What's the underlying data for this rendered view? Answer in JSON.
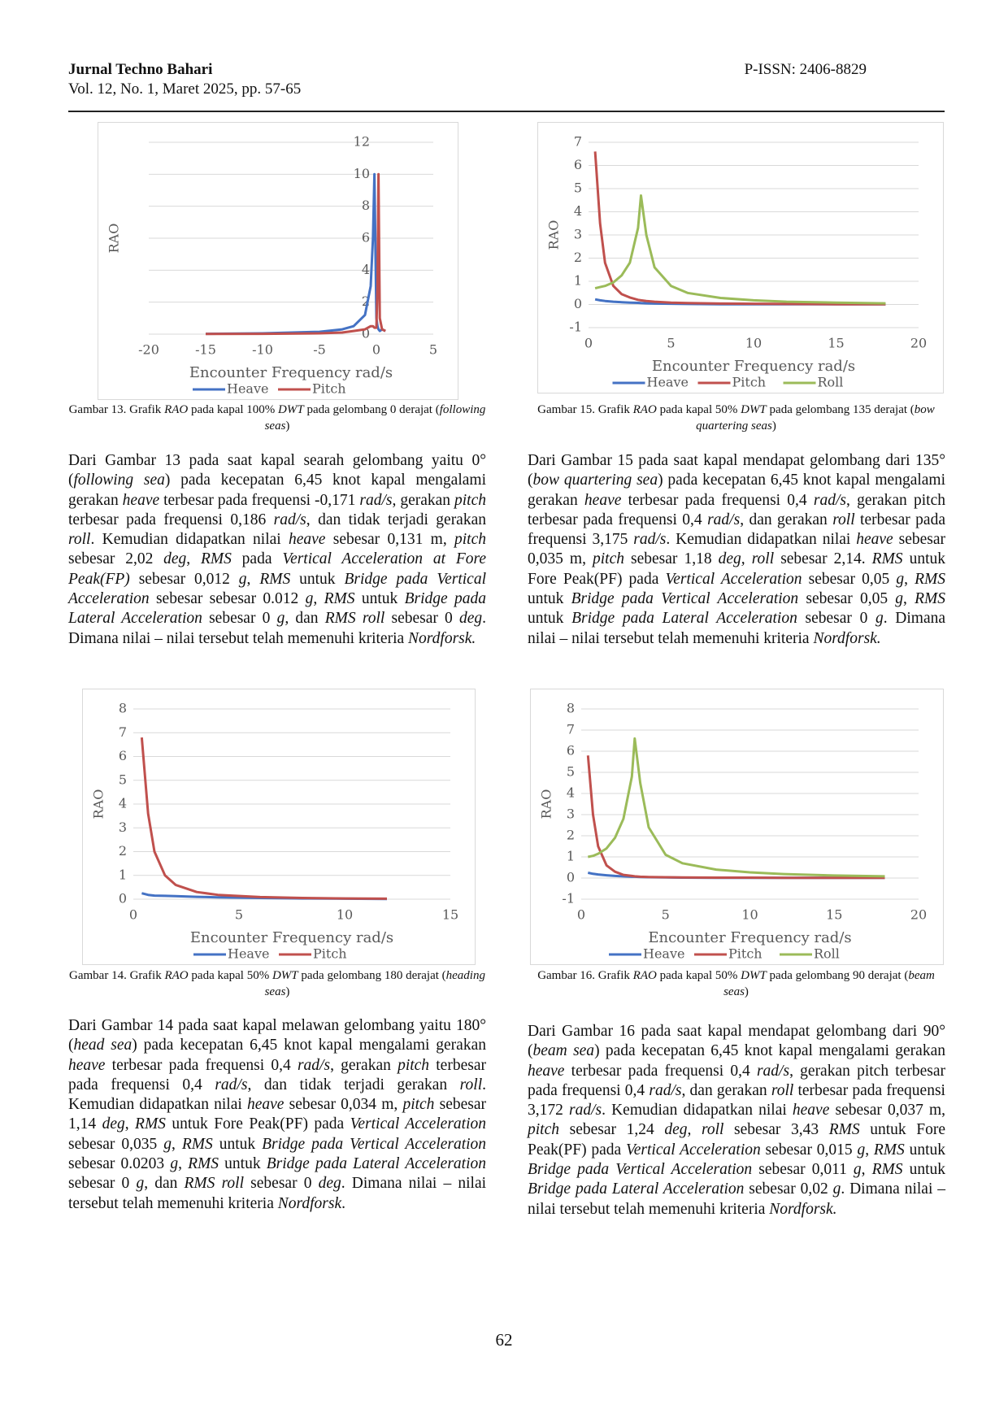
{
  "header": {
    "journal": "Jurnal Techno Bahari",
    "volume": "Vol. 12, No. 1, Maret 2025, pp. 57-65",
    "issn": "P-ISSN: 2406-8829"
  },
  "chart_data": [
    {
      "type": "line",
      "y_label": "RAO",
      "x_label": "Encounter Frequency rad/s",
      "grid": true,
      "xlim": [
        -20,
        5
      ],
      "xticks": [
        -20,
        -15,
        -10,
        -5,
        0,
        5
      ],
      "ylim": [
        0,
        12
      ],
      "yticks": [
        0,
        2,
        4,
        6,
        8,
        10,
        12
      ],
      "x": [
        -15,
        -10,
        -5,
        -3,
        -2,
        -1,
        -0.5,
        -0.3,
        -0.171,
        0,
        0.1,
        0.186,
        0.3,
        0.5,
        0.8
      ],
      "series": [
        {
          "name": "Heave",
          "color": "#4472c4",
          "values": [
            0.02,
            0.05,
            0.15,
            0.3,
            0.5,
            1.2,
            3,
            6,
            10,
            1,
            0.5,
            0.3,
            0.2,
            0.3,
            0.2
          ]
        },
        {
          "name": "Pitch",
          "color": "#c0504d",
          "values": [
            0.01,
            0.02,
            0.05,
            0.1,
            0.2,
            0.3,
            0.5,
            0.5,
            0.4,
            0.4,
            3,
            10,
            1,
            0.3,
            0.2
          ]
        }
      ]
    },
    {
      "type": "line",
      "y_label": "RAO",
      "x_label": "Encounter Frequency rad/s",
      "grid": true,
      "xlim": [
        0,
        20
      ],
      "xticks": [
        0,
        5,
        10,
        15,
        20
      ],
      "ylim": [
        -1,
        7
      ],
      "yticks": [
        -1,
        0,
        1,
        2,
        3,
        4,
        5,
        6,
        7
      ],
      "x": [
        0.4,
        0.7,
        1,
        1.5,
        2,
        2.5,
        3,
        3.175,
        3.5,
        4,
        5,
        6,
        8,
        10,
        12,
        15,
        18
      ],
      "series": [
        {
          "name": "Heave",
          "color": "#4472c4",
          "values": [
            0.22,
            0.18,
            0.15,
            0.12,
            0.1,
            0.08,
            0.07,
            0.06,
            0.05,
            0.04,
            0.03,
            0.02,
            0.01,
            0.01,
            0.01,
            0.01,
            0.01
          ]
        },
        {
          "name": "Pitch",
          "color": "#c0504d",
          "values": [
            6.6,
            3.5,
            1.8,
            0.8,
            0.45,
            0.3,
            0.2,
            0.18,
            0.15,
            0.12,
            0.08,
            0.06,
            0.04,
            0.03,
            0.02,
            0.01,
            0.01
          ]
        },
        {
          "name": "Roll",
          "color": "#9bbb59",
          "values": [
            0.7,
            0.75,
            0.8,
            0.95,
            1.25,
            1.8,
            3.3,
            4.7,
            3.0,
            1.6,
            0.8,
            0.5,
            0.28,
            0.18,
            0.12,
            0.08,
            0.05
          ]
        }
      ]
    },
    {
      "type": "line",
      "y_label": "RAO",
      "x_label": "Encounter Frequency rad/s",
      "grid": true,
      "xlim": [
        0,
        15
      ],
      "xticks": [
        0,
        5,
        10,
        15
      ],
      "ylim": [
        0,
        8
      ],
      "yticks": [
        0,
        1,
        2,
        3,
        4,
        5,
        6,
        7,
        8
      ],
      "x": [
        0.4,
        0.7,
        1,
        1.5,
        2,
        3,
        4,
        6,
        8,
        10,
        12
      ],
      "series": [
        {
          "name": "Heave",
          "color": "#4472c4",
          "values": [
            0.25,
            0.18,
            0.15,
            0.14,
            0.13,
            0.1,
            0.08,
            0.05,
            0.03,
            0.02,
            0.01
          ]
        },
        {
          "name": "Pitch",
          "color": "#c0504d",
          "values": [
            6.8,
            3.6,
            2.0,
            1.0,
            0.6,
            0.3,
            0.18,
            0.09,
            0.05,
            0.03,
            0.02
          ]
        }
      ]
    },
    {
      "type": "line",
      "y_label": "RAO",
      "x_label": "Encounter Frequency rad/s",
      "grid": true,
      "xlim": [
        0,
        20
      ],
      "xticks": [
        0,
        5,
        10,
        15,
        20
      ],
      "ylim": [
        -1,
        8
      ],
      "yticks": [
        -1,
        0,
        1,
        2,
        3,
        4,
        5,
        6,
        7,
        8
      ],
      "x": [
        0.4,
        0.7,
        1,
        1.5,
        2,
        2.5,
        3,
        3.172,
        3.5,
        4,
        5,
        6,
        8,
        10,
        12,
        15,
        18
      ],
      "series": [
        {
          "name": "Heave",
          "color": "#4472c4",
          "values": [
            0.25,
            0.2,
            0.17,
            0.13,
            0.1,
            0.08,
            0.06,
            0.06,
            0.05,
            0.04,
            0.03,
            0.02,
            0.01,
            0.01,
            0.01,
            0.01,
            0.01
          ]
        },
        {
          "name": "Pitch",
          "color": "#c0504d",
          "values": [
            5.8,
            3,
            1.5,
            0.6,
            0.3,
            0.15,
            0.1,
            0.08,
            0.06,
            0.05,
            0.04,
            0.03,
            0.02,
            0.02,
            0.01,
            0.01,
            0.01
          ]
        },
        {
          "name": "Roll",
          "color": "#9bbb59",
          "values": [
            1.0,
            1.05,
            1.15,
            1.4,
            1.9,
            2.8,
            4.8,
            6.6,
            4.5,
            2.4,
            1.1,
            0.7,
            0.4,
            0.27,
            0.19,
            0.12,
            0.08
          ]
        }
      ]
    }
  ],
  "captions": [
    [
      "Gambar 13. Grafik ",
      "RAO",
      " pada kapal 100% ",
      "DWT",
      " pada gelombang 0 derajat (",
      "following seas",
      ")"
    ],
    [
      "Gambar 15. Grafik ",
      "RAO",
      " pada kapal 50% ",
      "DWT",
      " pada gelombang 135 derajat (",
      "bow quartering seas",
      ")"
    ],
    [
      "Gambar 14. Grafik ",
      "RAO",
      " pada kapal 50% ",
      "DWT",
      " pada gelombang 180 derajat (",
      "heading seas",
      ")"
    ],
    [
      "Gambar 16. Grafik ",
      "RAO",
      " pada kapal 50% ",
      "DWT",
      " pada gelombang 90 derajat (",
      "beam seas",
      ")"
    ]
  ],
  "paragraphs": [
    [
      "Dari Gambar 13 pada saat kapal searah gelombang yaitu 0° (",
      "following sea",
      ") pada kecepatan 6,45 knot kapal mengalami gerakan ",
      "heave",
      " terbesar pada frequensi -0,171 ",
      "rad/s",
      ", gerakan ",
      "pitch",
      " terbesar pada frequensi 0,186 ",
      "rad/s",
      ", dan tidak terjadi gerakan ",
      "roll",
      ". Kemudian didapatkan nilai ",
      "heave",
      " sebesar 0,131 m, ",
      "pitch",
      " sebesar 2,02 ",
      "deg",
      ", ",
      "RMS",
      " pada ",
      "Vertical Acceleration at Fore Peak(FP)",
      " sebesar 0,012 ",
      "g",
      ", ",
      "RMS",
      " untuk ",
      "Bridge pada Vertical Acceleration",
      " sebesar sebesar 0.012 ",
      "g",
      ", ",
      "RMS",
      " untuk ",
      "Bridge pada Lateral Acceleration",
      " sebesar 0 ",
      "g,",
      " dan ",
      "RMS roll",
      " sebesar 0 ",
      "deg",
      ". Dimana nilai – nilai tersebut telah memenuhi kriteria ",
      "Nordforsk."
    ],
    [
      "Dari Gambar 15 pada saat kapal mendapat gelombang dari 135° (",
      "bow quartering sea",
      ") pada kecepatan 6,45 knot kapal mengalami gerakan ",
      "heave",
      " terbesar pada frequensi 0,4 ",
      "rad/s",
      ", gerakan pitch terbesar pada frequensi 0,4 ",
      "rad/s",
      ", dan gerakan ",
      "roll",
      " terbesar pada frequensi 3,175 ",
      "rad/s",
      ". Kemudian didapatkan nilai ",
      "heave",
      " sebesar 0,035 m, ",
      "pitch",
      " sebesar 1,18 ",
      "deg, roll",
      " sebesar 2,14. ",
      "RMS",
      " untuk Fore Peak(PF) pada ",
      "Vertical Acceleration",
      " sebesar 0,05 ",
      "g",
      ", ",
      "RMS",
      " untuk ",
      "Bridge pada Vertical Acceleration",
      " sebesar 0,05 ",
      "g",
      ", ",
      "RMS",
      " untuk ",
      "Bridge pada Lateral Acceleration",
      " sebesar 0 ",
      "g",
      ". Dimana nilai – nilai tersebut telah memenuhi kriteria ",
      "Nordforsk."
    ],
    [
      "Dari Gambar 14 pada saat kapal melawan gelombang yaitu 180° (",
      "head sea",
      ") pada kecepatan 6,45 knot kapal mengalami gerakan ",
      "heave",
      " terbesar pada frequensi 0,4 ",
      "rad/s",
      ", gerakan ",
      "pitch",
      " terbesar pada frequensi 0,4 ",
      "rad/s",
      ", dan tidak terjadi gerakan ",
      "roll",
      ". Kemudian didapatkan nilai ",
      "heave",
      " sebesar 0,034 m, ",
      "pitch",
      " sebesar 1,14 ",
      "deg",
      ", ",
      "RMS",
      " untuk Fore Peak(PF) pada ",
      "Vertical Acceleration",
      " sebesar 0,035 ",
      "g",
      ", ",
      "RMS",
      " untuk ",
      "Bridge pada Vertical Acceleration",
      " sebesar 0.0203 ",
      "g",
      ", ",
      "RMS",
      " untuk ",
      "Bridge pada Lateral Acceleration",
      " sebesar 0 ",
      "g",
      ", dan ",
      "RMS roll",
      " sebesar 0 ",
      "deg",
      ". Dimana nilai – nilai tersebut telah memenuhi kriteria ",
      "Nordforsk",
      "."
    ],
    [
      "Dari Gambar 16 pada saat kapal mendapat gelombang dari 90° (",
      "beam sea",
      ") pada kecepatan 6,45 knot kapal mengalami gerakan ",
      "heave",
      " terbesar pada frequensi 0,4 ",
      "rad/s",
      ", gerakan pitch terbesar pada frequensi 0,4 ",
      "rad/s",
      ", dan gerakan ",
      "roll",
      " terbesar pada frequensi 3,172 ",
      "rad/s",
      ". Kemudian didapatkan nilai ",
      "heave",
      " sebesar 0,037 m, ",
      "pitch",
      " sebesar 1,24 ",
      "deg, roll",
      " sebesar 3,43 ",
      "RMS",
      " untuk Fore Peak(PF) pada ",
      "Vertical Acceleration",
      " sebesar 0,015 ",
      "g",
      ", ",
      "RMS",
      " untuk ",
      "Bridge pada Vertical Acceleration",
      " sebesar 0,011 ",
      "g",
      ", ",
      "RMS",
      " untuk ",
      "Bridge pada Lateral Acceleration",
      " sebesar 0,02 ",
      "g",
      ". Dimana nilai – nilai tersebut telah memenuhi kriteria ",
      "Nordforsk."
    ]
  ],
  "page_number": 62
}
